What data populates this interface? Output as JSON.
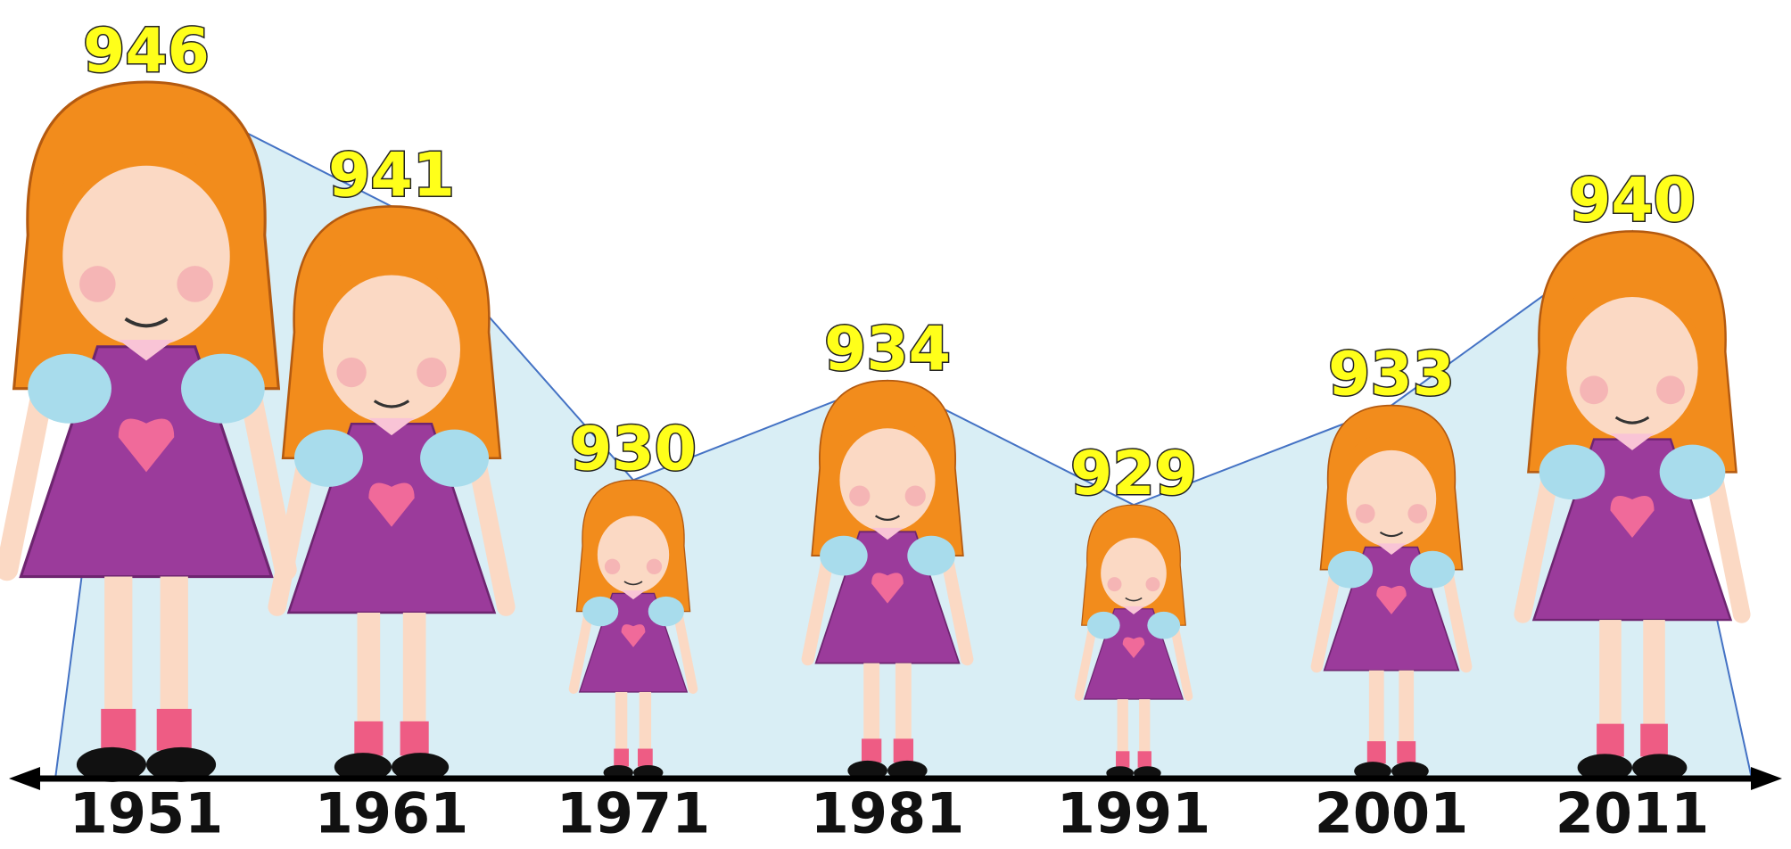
{
  "chart_data": {
    "type": "area",
    "categories": [
      "1951",
      "1961",
      "1971",
      "1981",
      "1991",
      "2001",
      "2011"
    ],
    "values": [
      946,
      941,
      930,
      934,
      929,
      933,
      940
    ],
    "color": "#d9eef5",
    "line_color": "#4472c4",
    "ylim": [
      918,
      946
    ]
  }
}
